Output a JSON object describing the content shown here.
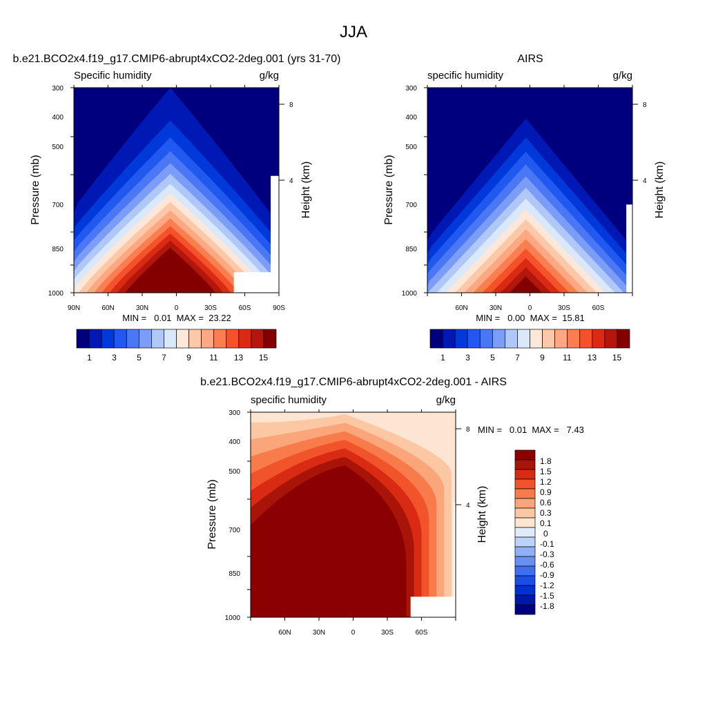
{
  "main_title": "JJA",
  "colors": {
    "blue_red_15": [
      "#00007f",
      "#0019b4",
      "#0039d9",
      "#2158f0",
      "#4a78f5",
      "#7c9df7",
      "#b0c8f8",
      "#dae8fb",
      "#fde7d8",
      "#fdc8a8",
      "#fba883",
      "#fa7f50",
      "#f4522b",
      "#db2a14",
      "#b3170b",
      "#840000"
    ],
    "diff_16": [
      "#010080",
      "#0017aa",
      "#0030d2",
      "#1a4fe4",
      "#3f6ef0",
      "#6890f2",
      "#92b0f5",
      "#bcd2f8",
      "#e0ecfb",
      "#fde5d3",
      "#fcc8a3",
      "#fba67a",
      "#f87c4b",
      "#f1542a",
      "#d92b13",
      "#a91408",
      "#8b0000"
    ]
  },
  "chart_data": [
    {
      "type": "heatmap",
      "id": "model",
      "title": "b.e21.BCO2x4.f19_g17.CMIP6-abrupt4xCO2-2deg.001 (yrs 31-70)",
      "left_string": "Specific humidity",
      "right_string": "g/kg",
      "ylabel": "Pressure (mb)",
      "ylabel_right": "Height (km)",
      "x_ticks": [
        "90N",
        "60N",
        "30N",
        "0",
        "30S",
        "60S",
        "90S"
      ],
      "x_range": [
        90,
        -90
      ],
      "y_ticks": [
        "300",
        "400",
        "500",
        "700",
        "850",
        "1000"
      ],
      "y_range_mb": [
        300,
        1000
      ],
      "y_right_ticks": [
        "8",
        "4"
      ],
      "min_max_text": "MIN =   0.01  MAX =  23.22",
      "min": 0.01,
      "max": 23.22,
      "colorbar_labels": [
        "1",
        "3",
        "5",
        "7",
        "9",
        "11",
        "13",
        "15"
      ],
      "colorbar_levels": [
        1,
        2,
        3,
        4,
        5,
        6,
        7,
        8,
        9,
        10,
        11,
        12,
        13,
        14,
        15
      ]
    },
    {
      "type": "heatmap",
      "id": "obs",
      "title": "AIRS",
      "left_string": "specific humidity",
      "right_string": "g/kg",
      "ylabel": "Pressure (mb)",
      "ylabel_right": "Height (km)",
      "x_ticks": [
        "60N",
        "30N",
        "0",
        "30S",
        "60S"
      ],
      "x_range": [
        90,
        -90
      ],
      "y_ticks": [
        "300",
        "400",
        "500",
        "700",
        "850",
        "1000"
      ],
      "y_range_mb": [
        300,
        1000
      ],
      "y_right_ticks": [
        "8",
        "4"
      ],
      "min_max_text": "MIN =   0.00  MAX =  15.81",
      "min": 0.0,
      "max": 15.81,
      "colorbar_labels": [
        "1",
        "3",
        "5",
        "7",
        "9",
        "11",
        "13",
        "15"
      ],
      "colorbar_levels": [
        1,
        2,
        3,
        4,
        5,
        6,
        7,
        8,
        9,
        10,
        11,
        12,
        13,
        14,
        15
      ]
    },
    {
      "type": "heatmap",
      "id": "diff",
      "title": "b.e21.BCO2x4.f19_g17.CMIP6-abrupt4xCO2-2deg.001 - AIRS",
      "left_string": "specific humidity",
      "right_string": "g/kg",
      "ylabel": "Pressure (mb)",
      "ylabel_right": "Height (km)",
      "x_ticks": [
        "60N",
        "30N",
        "0",
        "30S",
        "60S"
      ],
      "x_range": [
        90,
        -90
      ],
      "y_ticks": [
        "300",
        "400",
        "500",
        "700",
        "850",
        "1000"
      ],
      "y_range_mb": [
        300,
        1000
      ],
      "y_right_ticks": [
        "8",
        "4"
      ],
      "min_max_text": "MIN =   0.01  MAX =   7.43",
      "min": 0.01,
      "max": 7.43,
      "colorbar_labels": [
        "1.8",
        "1.5",
        "1.2",
        "0.9",
        "0.6",
        "0.3",
        "0.1",
        "0",
        "-0.1",
        "-0.3",
        "-0.6",
        "-0.9",
        "-1.2",
        "-1.5",
        "-1.8"
      ],
      "colorbar_levels": [
        -1.8,
        -1.5,
        -1.2,
        -0.9,
        -0.6,
        -0.3,
        -0.1,
        0,
        0.1,
        0.3,
        0.6,
        0.9,
        1.2,
        1.5,
        1.8
      ]
    }
  ]
}
